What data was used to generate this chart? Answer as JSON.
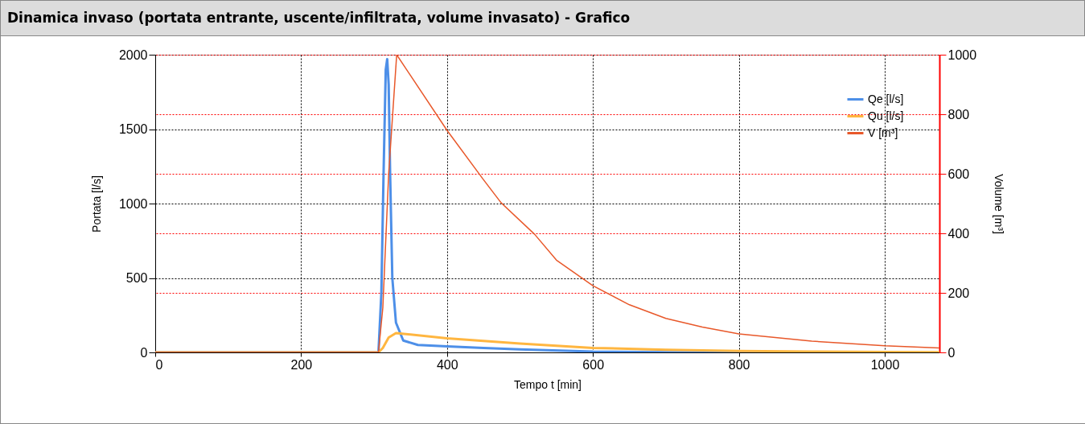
{
  "chart_data": {
    "type": "line",
    "title": "Dinamica invaso (portata entrante, uscente/infiltrata, volume invasato) - Grafico",
    "xlabel": "Tempo t [min]",
    "ylabel": "Portata [l/s]",
    "y2label": "Volume [m³]",
    "xlim": [
      0,
      1075
    ],
    "xticks": [
      0,
      200,
      400,
      600,
      800,
      1000
    ],
    "ylim": [
      0,
      2000
    ],
    "yticks": [
      0,
      500,
      1000,
      1500,
      2000
    ],
    "y2lim": [
      0,
      1000
    ],
    "y2ticks": [
      0,
      200,
      400,
      600,
      800,
      1000
    ],
    "grid": true,
    "legend": "top right",
    "series": [
      {
        "name": "Qe [l/s]",
        "color": "#4d8fe8",
        "x": [
          0,
          300,
          306,
          310,
          313,
          316,
          318,
          320,
          322,
          325,
          330,
          340,
          360,
          400,
          450,
          500,
          600,
          700,
          800,
          900
        ],
        "values": [
          0,
          0,
          0,
          400,
          1200,
          1900,
          1970,
          1800,
          1200,
          500,
          200,
          80,
          50,
          40,
          30,
          20,
          5,
          2,
          0,
          0
        ]
      },
      {
        "name": "Qu [l/s]",
        "color": "#ffb640",
        "x": [
          0,
          300,
          306,
          312,
          320,
          330,
          400,
          500,
          600,
          700,
          800,
          900,
          1000,
          1075
        ],
        "values": [
          0,
          0,
          0,
          30,
          100,
          130,
          95,
          60,
          30,
          18,
          10,
          6,
          3,
          2
        ]
      },
      {
        "name": "V [m³]",
        "color": "#e8582a",
        "axis": "y2",
        "x": [
          0,
          300,
          306,
          312,
          320,
          331,
          350,
          400,
          450,
          474,
          520,
          550,
          600,
          650,
          700,
          750,
          800,
          900,
          1000,
          1075
        ],
        "values": [
          0,
          0,
          0,
          150,
          600,
          1000,
          930,
          746,
          580,
          503,
          397,
          310,
          224,
          160,
          114,
          85,
          62,
          38,
          22,
          15
        ]
      }
    ]
  }
}
